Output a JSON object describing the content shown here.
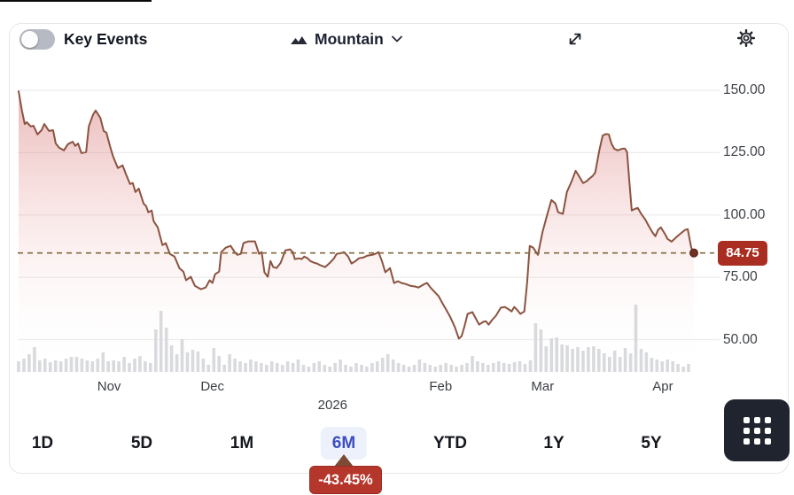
{
  "header": {
    "key_events_label": "Key Events",
    "key_events_state": "off",
    "chart_type_label": "Mountain"
  },
  "ranges": {
    "items": [
      "1D",
      "5D",
      "1M",
      "6M",
      "YTD",
      "1Y",
      "5Y"
    ],
    "selected": "6M",
    "change_label": "-43.45%"
  },
  "colors": {
    "line": "#8b5340",
    "dashed": "#80683c",
    "dot": "#6f3120",
    "grid": "#ececec",
    "volume": "#d8dadd",
    "fill_top": "rgba(203,82,82,0.40)",
    "fill_mid": "rgba(233,150,150,0.15)",
    "price_badge_bg": "#a92d20",
    "tooltip_bg": "#b5372c",
    "selected_range": "#3c4ec0"
  },
  "chart_data": {
    "type": "area",
    "title": "",
    "legend": [],
    "grid": "horizontal",
    "y_axis": {
      "tick_labels": [
        "150.00",
        "125.00",
        "100.00",
        "75.00",
        "50.00"
      ],
      "tick_values": [
        150,
        125,
        100,
        75,
        50
      ],
      "range": [
        50,
        150
      ],
      "side": "right"
    },
    "x_axis": {
      "labels": [
        {
          "label": "Nov",
          "t": 0.134,
          "row": 1
        },
        {
          "label": "Dec",
          "t": 0.287,
          "row": 1
        },
        {
          "label": "2026",
          "t": 0.465,
          "row": 2
        },
        {
          "label": "Feb",
          "t": 0.625,
          "row": 1
        },
        {
          "label": "Mar",
          "t": 0.776,
          "row": 1
        },
        {
          "label": "Apr",
          "t": 0.954,
          "row": 1
        }
      ]
    },
    "current_price": 84.75,
    "current_price_label": "84.75",
    "period_change_pct": -43.45,
    "price_points": [
      [
        0.0,
        149.6
      ],
      [
        0.005,
        141.8
      ],
      [
        0.009,
        136.5
      ],
      [
        0.012,
        137.2
      ],
      [
        0.018,
        135.5
      ],
      [
        0.022,
        135.8
      ],
      [
        0.028,
        132.3
      ],
      [
        0.034,
        134.0
      ],
      [
        0.038,
        136.5
      ],
      [
        0.045,
        133.7
      ],
      [
        0.051,
        134.0
      ],
      [
        0.055,
        128.7
      ],
      [
        0.06,
        127.0
      ],
      [
        0.067,
        125.9
      ],
      [
        0.073,
        128.4
      ],
      [
        0.08,
        129.4
      ],
      [
        0.084,
        127.7
      ],
      [
        0.088,
        128.7
      ],
      [
        0.093,
        124.8
      ],
      [
        0.1,
        125.2
      ],
      [
        0.104,
        135.5
      ],
      [
        0.11,
        140.1
      ],
      [
        0.114,
        141.9
      ],
      [
        0.121,
        139.0
      ],
      [
        0.126,
        133.7
      ],
      [
        0.13,
        133.0
      ],
      [
        0.136,
        127.0
      ],
      [
        0.14,
        123.4
      ],
      [
        0.147,
        118.8
      ],
      [
        0.154,
        119.9
      ],
      [
        0.159,
        116.3
      ],
      [
        0.165,
        112.4
      ],
      [
        0.169,
        112.8
      ],
      [
        0.173,
        109.2
      ],
      [
        0.178,
        110.6
      ],
      [
        0.185,
        104.6
      ],
      [
        0.189,
        103.5
      ],
      [
        0.192,
        101.1
      ],
      [
        0.197,
        101.8
      ],
      [
        0.2,
        97.5
      ],
      [
        0.206,
        95.0
      ],
      [
        0.213,
        87.9
      ],
      [
        0.218,
        88.7
      ],
      [
        0.224,
        84.4
      ],
      [
        0.231,
        83.3
      ],
      [
        0.238,
        78.7
      ],
      [
        0.244,
        77.3
      ],
      [
        0.248,
        73.8
      ],
      [
        0.255,
        75.2
      ],
      [
        0.261,
        71.6
      ],
      [
        0.27,
        70.2
      ],
      [
        0.277,
        70.9
      ],
      [
        0.283,
        73.8
      ],
      [
        0.287,
        72.7
      ],
      [
        0.291,
        76.2
      ],
      [
        0.297,
        77.3
      ],
      [
        0.3,
        85.1
      ],
      [
        0.307,
        86.9
      ],
      [
        0.314,
        87.6
      ],
      [
        0.32,
        85.1
      ],
      [
        0.324,
        84.0
      ],
      [
        0.329,
        84.4
      ],
      [
        0.333,
        88.7
      ],
      [
        0.34,
        89.4
      ],
      [
        0.35,
        89.4
      ],
      [
        0.356,
        84.4
      ],
      [
        0.36,
        85.1
      ],
      [
        0.364,
        77.0
      ],
      [
        0.369,
        75.2
      ],
      [
        0.373,
        81.5
      ],
      [
        0.377,
        79.1
      ],
      [
        0.382,
        78.7
      ],
      [
        0.388,
        80.8
      ],
      [
        0.395,
        85.8
      ],
      [
        0.402,
        86.2
      ],
      [
        0.406,
        85.1
      ],
      [
        0.409,
        82.3
      ],
      [
        0.415,
        82.6
      ],
      [
        0.419,
        82.3
      ],
      [
        0.423,
        83.3
      ],
      [
        0.428,
        82.6
      ],
      [
        0.432,
        81.5
      ],
      [
        0.438,
        80.8
      ],
      [
        0.442,
        80.5
      ],
      [
        0.447,
        79.8
      ],
      [
        0.454,
        79.1
      ],
      [
        0.461,
        80.8
      ],
      [
        0.467,
        82.6
      ],
      [
        0.471,
        84.4
      ],
      [
        0.478,
        84.7
      ],
      [
        0.482,
        85.1
      ],
      [
        0.488,
        83.3
      ],
      [
        0.493,
        80.5
      ],
      [
        0.499,
        81.5
      ],
      [
        0.504,
        82.6
      ],
      [
        0.51,
        82.9
      ],
      [
        0.517,
        83.7
      ],
      [
        0.524,
        84.0
      ],
      [
        0.528,
        84.4
      ],
      [
        0.533,
        85.1
      ],
      [
        0.538,
        81.5
      ],
      [
        0.543,
        77.0
      ],
      [
        0.55,
        78.7
      ],
      [
        0.556,
        72.7
      ],
      [
        0.562,
        73.4
      ],
      [
        0.567,
        72.7
      ],
      [
        0.573,
        72.3
      ],
      [
        0.58,
        71.6
      ],
      [
        0.587,
        71.3
      ],
      [
        0.592,
        70.9
      ],
      [
        0.601,
        72.3
      ],
      [
        0.605,
        72.7
      ],
      [
        0.61,
        70.9
      ],
      [
        0.616,
        69.1
      ],
      [
        0.622,
        67.4
      ],
      [
        0.627,
        64.9
      ],
      [
        0.633,
        62.1
      ],
      [
        0.639,
        59.2
      ],
      [
        0.646,
        55.0
      ],
      [
        0.652,
        50.4
      ],
      [
        0.656,
        51.4
      ],
      [
        0.66,
        55.0
      ],
      [
        0.665,
        60.3
      ],
      [
        0.672,
        61.0
      ],
      [
        0.677,
        58.5
      ],
      [
        0.682,
        56.0
      ],
      [
        0.688,
        57.1
      ],
      [
        0.692,
        57.4
      ],
      [
        0.696,
        56.0
      ],
      [
        0.701,
        57.8
      ],
      [
        0.707,
        59.6
      ],
      [
        0.714,
        62.8
      ],
      [
        0.72,
        63.1
      ],
      [
        0.726,
        62.1
      ],
      [
        0.73,
        61.3
      ],
      [
        0.734,
        63.1
      ],
      [
        0.739,
        61.7
      ],
      [
        0.743,
        60.3
      ],
      [
        0.749,
        61.3
      ],
      [
        0.753,
        72.7
      ],
      [
        0.757,
        87.6
      ],
      [
        0.762,
        86.9
      ],
      [
        0.769,
        84.0
      ],
      [
        0.776,
        93.3
      ],
      [
        0.782,
        99.3
      ],
      [
        0.789,
        106.0
      ],
      [
        0.795,
        104.6
      ],
      [
        0.799,
        101.1
      ],
      [
        0.806,
        100.4
      ],
      [
        0.812,
        109.2
      ],
      [
        0.819,
        113.5
      ],
      [
        0.825,
        117.7
      ],
      [
        0.829,
        116.0
      ],
      [
        0.836,
        112.8
      ],
      [
        0.841,
        113.5
      ],
      [
        0.845,
        114.5
      ],
      [
        0.85,
        115.6
      ],
      [
        0.854,
        117.0
      ],
      [
        0.86,
        125.9
      ],
      [
        0.865,
        131.9
      ],
      [
        0.87,
        132.5
      ],
      [
        0.874,
        132.3
      ],
      [
        0.878,
        128.7
      ],
      [
        0.882,
        126.6
      ],
      [
        0.887,
        125.9
      ],
      [
        0.894,
        126.6
      ],
      [
        0.898,
        126.6
      ],
      [
        0.901,
        125.2
      ],
      [
        0.905,
        111.7
      ],
      [
        0.908,
        101.8
      ],
      [
        0.913,
        102.5
      ],
      [
        0.917,
        102.8
      ],
      [
        0.922,
        100.4
      ],
      [
        0.928,
        98.2
      ],
      [
        0.933,
        95.7
      ],
      [
        0.939,
        92.9
      ],
      [
        0.943,
        91.5
      ],
      [
        0.947,
        94.0
      ],
      [
        0.951,
        95.0
      ],
      [
        0.957,
        92.5
      ],
      [
        0.961,
        90.4
      ],
      [
        0.967,
        89.3
      ],
      [
        0.974,
        91.1
      ],
      [
        0.98,
        92.5
      ],
      [
        0.987,
        94.0
      ],
      [
        0.991,
        94.3
      ],
      [
        0.996,
        86.9
      ],
      [
        1.0,
        84.75
      ]
    ],
    "volume_relative": [
      12,
      15,
      20,
      28,
      13,
      15,
      11,
      13,
      12,
      15,
      17,
      17,
      15,
      13,
      12,
      15,
      22,
      12,
      13,
      12,
      17,
      10,
      15,
      18,
      12,
      10,
      48,
      69,
      50,
      30,
      20,
      37,
      22,
      25,
      23,
      15,
      8,
      27,
      18,
      8,
      20,
      15,
      12,
      10,
      14,
      12,
      10,
      8,
      12,
      10,
      8,
      12,
      10,
      14,
      8,
      6,
      10,
      12,
      8,
      6,
      10,
      14,
      8,
      6,
      10,
      8,
      6,
      10,
      12,
      16,
      20,
      14,
      10,
      8,
      6,
      8,
      14,
      10,
      8,
      6,
      8,
      10,
      8,
      6,
      8,
      10,
      18,
      12,
      10,
      8,
      10,
      12,
      10,
      9,
      11,
      12,
      9,
      13,
      55,
      48,
      29,
      38,
      39,
      31,
      30,
      26,
      28,
      24,
      28,
      29,
      26,
      21,
      17,
      24,
      17,
      27,
      21,
      76,
      26,
      22,
      16,
      14,
      12,
      14,
      12,
      9,
      6,
      9
    ]
  }
}
